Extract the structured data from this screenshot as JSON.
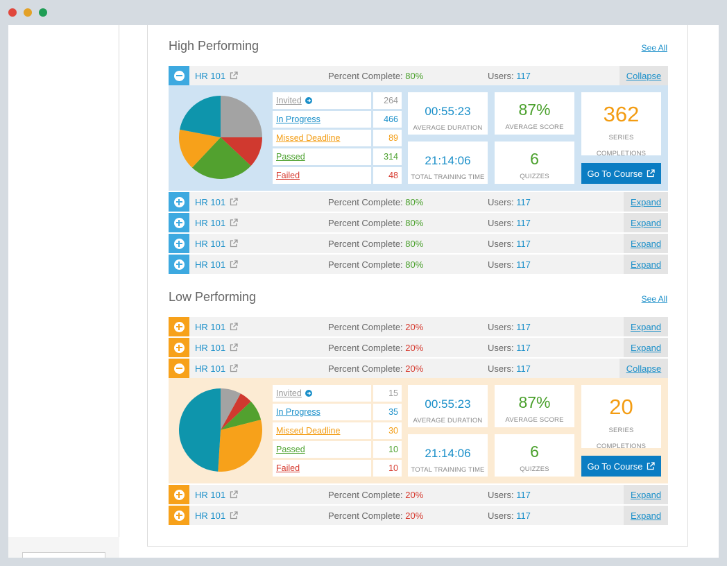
{
  "window": {
    "controls": [
      "close",
      "minimize",
      "maximize"
    ]
  },
  "colors": {
    "blue_accent": "#3da9e0",
    "orange_accent": "#f7a11a",
    "link": "#1a8fc9",
    "green": "#4aa02c",
    "red": "#d63a2f"
  },
  "high": {
    "title": "High Performing",
    "see_all": "See All",
    "expanded": {
      "course": "HR 101",
      "pct_label": "Percent Complete:",
      "pct_value": "80%",
      "users_label": "Users:",
      "users_value": "117",
      "action": "Collapse",
      "stats": [
        {
          "label": "Invited",
          "value": "264"
        },
        {
          "label": "In Progress",
          "value": "466"
        },
        {
          "label": "Missed Deadline",
          "value": "89"
        },
        {
          "label": "Passed",
          "value": "314"
        },
        {
          "label": "Failed",
          "value": "48"
        }
      ],
      "avg_duration": "00:55:23",
      "avg_duration_label": "AVERAGE DURATION",
      "avg_score": "87%",
      "avg_score_label": "AVERAGE SCORE",
      "series_completions": "362",
      "series_label_1": "SERIES",
      "series_label_2": "COMPLETIONS",
      "total_time": "21:14:06",
      "total_time_label": "TOTAL TRAINING TIME",
      "quizzes": "6",
      "quizzes_label": "QUIZZES",
      "go_button": "Go To Course"
    },
    "rows": [
      {
        "course": "HR 101",
        "pct_label": "Percent Complete:",
        "pct_value": "80%",
        "users_label": "Users:",
        "users_value": "117",
        "action": "Expand"
      },
      {
        "course": "HR 101",
        "pct_label": "Percent Complete:",
        "pct_value": "80%",
        "users_label": "Users:",
        "users_value": "117",
        "action": "Expand"
      },
      {
        "course": "HR 101",
        "pct_label": "Percent Complete:",
        "pct_value": "80%",
        "users_label": "Users:",
        "users_value": "117",
        "action": "Expand"
      },
      {
        "course": "HR 101",
        "pct_label": "Percent Complete:",
        "pct_value": "80%",
        "users_label": "Users:",
        "users_value": "117",
        "action": "Expand"
      }
    ]
  },
  "low": {
    "title": "Low Performing",
    "see_all": "See All",
    "rows_top": [
      {
        "course": "HR 101",
        "pct_label": "Percent Complete:",
        "pct_value": "20%",
        "users_label": "Users:",
        "users_value": "117",
        "action": "Expand"
      },
      {
        "course": "HR 101",
        "pct_label": "Percent Complete:",
        "pct_value": "20%",
        "users_label": "Users:",
        "users_value": "117",
        "action": "Expand"
      }
    ],
    "expanded": {
      "course": "HR 101",
      "pct_label": "Percent Complete:",
      "pct_value": "20%",
      "users_label": "Users:",
      "users_value": "117",
      "action": "Collapse",
      "stats": [
        {
          "label": "Invited",
          "value": "15"
        },
        {
          "label": "In Progress",
          "value": "35"
        },
        {
          "label": "Missed Deadline",
          "value": "30"
        },
        {
          "label": "Passed",
          "value": "10"
        },
        {
          "label": "Failed",
          "value": "10"
        }
      ],
      "avg_duration": "00:55:23",
      "avg_duration_label": "AVERAGE DURATION",
      "avg_score": "87%",
      "avg_score_label": "AVERAGE SCORE",
      "series_completions": "20",
      "series_label_1": "SERIES",
      "series_label_2": "COMPLETIONS",
      "total_time": "21:14:06",
      "total_time_label": "TOTAL TRAINING TIME",
      "quizzes": "6",
      "quizzes_label": "QUIZZES",
      "go_button": "Go To Course"
    },
    "rows_bottom": [
      {
        "course": "HR 101",
        "pct_label": "Percent Complete:",
        "pct_value": "20%",
        "users_label": "Users:",
        "users_value": "117",
        "action": "Expand"
      },
      {
        "course": "HR 101",
        "pct_label": "Percent Complete:",
        "pct_value": "20%",
        "users_label": "Users:",
        "users_value": "117",
        "action": "Expand"
      }
    ]
  },
  "pies": {
    "high": [
      {
        "name": "Invited",
        "value": 25,
        "color": "#a3a3a3"
      },
      {
        "name": "Failed",
        "value": 12,
        "color": "#d0392f"
      },
      {
        "name": "Passed",
        "value": 25,
        "color": "#52a12f"
      },
      {
        "name": "Missed Deadline",
        "value": 16,
        "color": "#f7a11a"
      },
      {
        "name": "In Progress",
        "value": 22,
        "color": "#0e95ac"
      }
    ],
    "low": [
      {
        "name": "Invited",
        "value": 8,
        "color": "#a3a3a3"
      },
      {
        "name": "Failed",
        "value": 5,
        "color": "#d0392f"
      },
      {
        "name": "Passed",
        "value": 8,
        "color": "#52a12f"
      },
      {
        "name": "Missed Deadline",
        "value": 30,
        "color": "#f7a11a"
      },
      {
        "name": "In Progress",
        "value": 49,
        "color": "#0e95ac"
      }
    ]
  }
}
